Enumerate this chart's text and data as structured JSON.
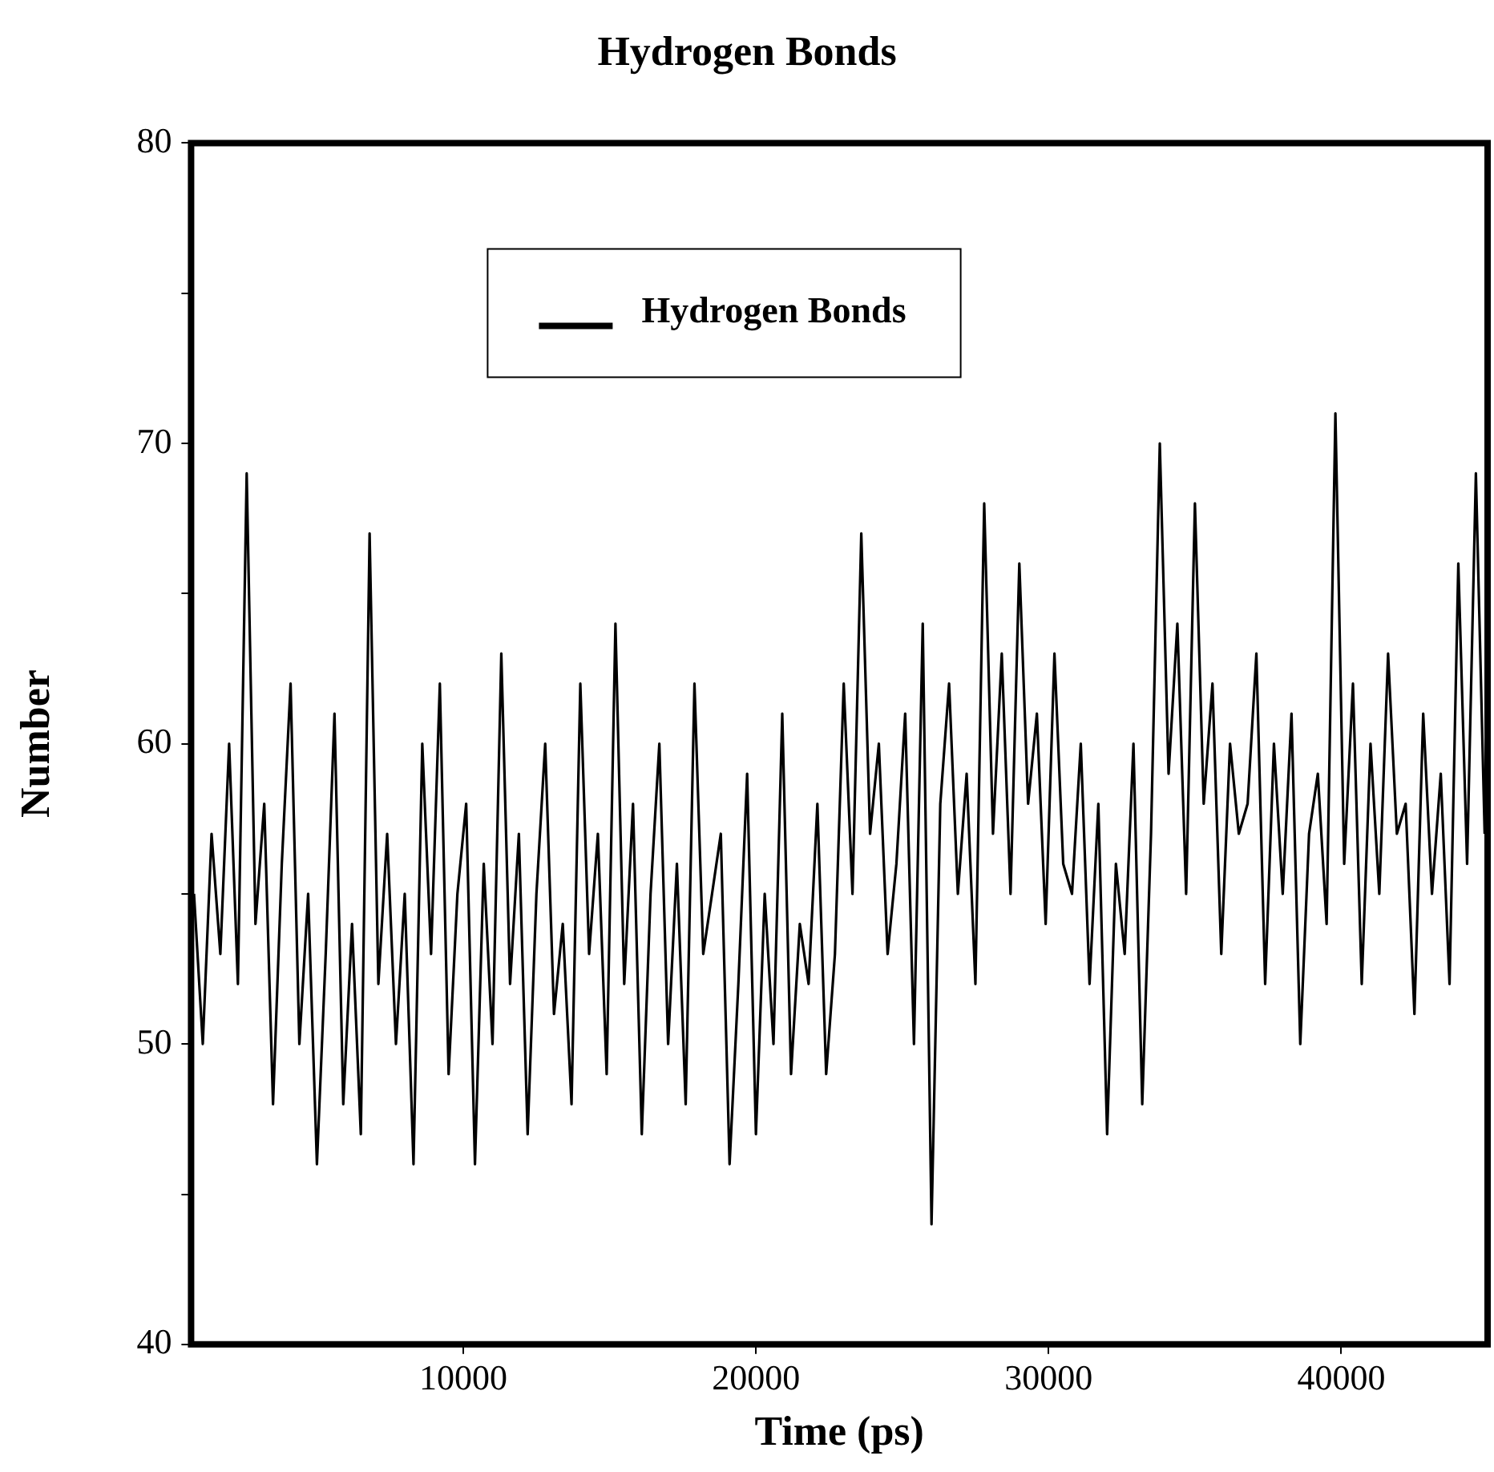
{
  "chart_data": {
    "type": "line",
    "title": "Hydrogen Bonds",
    "xlabel": "Time (ps)",
    "ylabel": "Number",
    "x": [
      800,
      1100,
      1400,
      1700,
      2000,
      2300,
      2600,
      2900,
      3200,
      3500,
      3800,
      4100,
      4400,
      4700,
      5000,
      5300,
      5600,
      5900,
      6200,
      6500,
      6800,
      7100,
      7400,
      7700,
      8000,
      8300,
      8600,
      8900,
      9200,
      9500,
      9800,
      10100,
      10400,
      10700,
      11000,
      11300,
      11600,
      11900,
      12200,
      12500,
      12800,
      13100,
      13400,
      13700,
      14000,
      14300,
      14600,
      14900,
      15200,
      15500,
      15800,
      16100,
      16400,
      16700,
      17000,
      17300,
      17600,
      17900,
      18200,
      18500,
      18800,
      19100,
      19400,
      19700,
      20000,
      20300,
      20600,
      20900,
      21200,
      21500,
      21800,
      22100,
      22400,
      22700,
      23000,
      23300,
      23600,
      23900,
      24200,
      24500,
      24800,
      25100,
      25400,
      25700,
      26000,
      26300,
      26600,
      26900,
      27200,
      27500,
      27800,
      28100,
      28400,
      28700,
      29000,
      29300,
      29600,
      29900,
      30200,
      30500,
      30800,
      31100,
      31400,
      31700,
      32000,
      32300,
      32600,
      32900,
      33200,
      33500,
      33800,
      34100,
      34400,
      34700,
      35000,
      35300,
      35600,
      35900,
      36200,
      36500,
      36800,
      37100,
      37400,
      37700,
      38000,
      38300,
      38600,
      38900,
      39200,
      39500,
      39800,
      40100,
      40400,
      40700,
      41000,
      41300,
      41600,
      41900,
      42200,
      42500,
      42800,
      43100,
      43400,
      43700,
      44000,
      44300,
      44600,
      44900
    ],
    "series": [
      {
        "name": "Hydrogen Bonds",
        "color": "#000000",
        "values": [
          55,
          50,
          57,
          53,
          60,
          52,
          69,
          54,
          58,
          48,
          56,
          62,
          50,
          55,
          46,
          53,
          61,
          48,
          54,
          47,
          67,
          52,
          57,
          50,
          55,
          46,
          60,
          53,
          62,
          49,
          55,
          58,
          46,
          56,
          50,
          63,
          52,
          57,
          47,
          55,
          60,
          51,
          54,
          48,
          62,
          53,
          57,
          49,
          64,
          52,
          58,
          47,
          55,
          60,
          50,
          56,
          48,
          62,
          53,
          55,
          57,
          46,
          52,
          59,
          47,
          55,
          50,
          61,
          49,
          54,
          52,
          58,
          49,
          53,
          62,
          55,
          67,
          57,
          60,
          53,
          56,
          61,
          50,
          64,
          44,
          58,
          62,
          55,
          59,
          52,
          68,
          57,
          63,
          55,
          66,
          58,
          61,
          54,
          63,
          56,
          55,
          60,
          52,
          58,
          47,
          56,
          53,
          60,
          48,
          57,
          70,
          59,
          64,
          55,
          68,
          58,
          62,
          53,
          60,
          57,
          58,
          63,
          52,
          60,
          55,
          61,
          50,
          57,
          59,
          54,
          71,
          56,
          62,
          52,
          60,
          55,
          63,
          57,
          58,
          51,
          61,
          55,
          59,
          52,
          66,
          56,
          69,
          57
        ]
      }
    ],
    "xlim": [
      700,
      45000
    ],
    "ylim": [
      40,
      80
    ],
    "xticks": [
      10000,
      20000,
      30000,
      40000
    ],
    "yticks": [
      40,
      {
        "value": 45,
        "label": null
      },
      50,
      {
        "value": 55,
        "label": null
      },
      60,
      {
        "value": 65,
        "label": null
      },
      70,
      {
        "value": 75,
        "label": null
      },
      80
    ],
    "grid": false,
    "legend": "top left",
    "marker": "none",
    "line_style": "solid"
  }
}
